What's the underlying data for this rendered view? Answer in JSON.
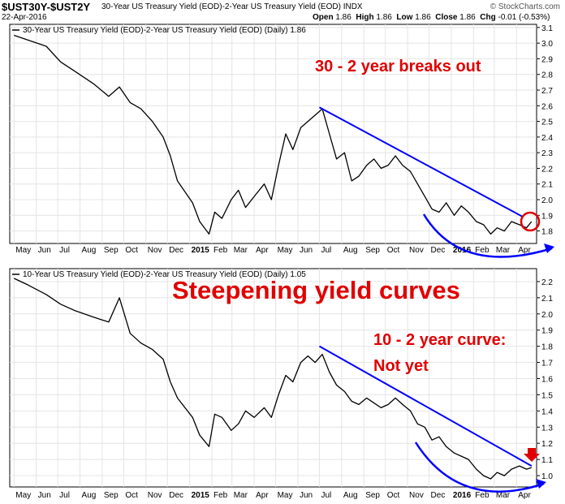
{
  "header": {
    "symbol": "$UST30Y-$UST2Y",
    "full_name": "30-Year US Treasury Yield (EOD)-2-Year US Treasury Yield (EOD) INDX",
    "date": "22-Apr-2016",
    "open_label": "Open",
    "open": "1.86",
    "high_label": "High",
    "high": "1.86",
    "low_label": "Low",
    "low": "1.86",
    "close_label": "Close",
    "close": "1.86",
    "chg_label": "Chg",
    "chg": "-0.01 (-0.53%)",
    "brand": "© StockCharts.com"
  },
  "colors": {
    "price": "#000000",
    "annotation": "#0000ff",
    "callout": "#e00000",
    "grid": "#e4e4e4"
  },
  "chart_data": [
    {
      "type": "line",
      "legend": "30-Year US Treasury Yield (EOD)-2-Year US Treasury Yield (EOD) (Daily) 1.86",
      "ylim": [
        1.72,
        3.12
      ],
      "yticks": [
        1.8,
        1.9,
        2.0,
        2.1,
        2.2,
        2.3,
        2.4,
        2.5,
        2.6,
        2.7,
        2.8,
        2.9,
        3.0,
        3.1
      ],
      "x_months": [
        "May",
        "Jun",
        "Jul",
        "Aug",
        "Sep",
        "Oct",
        "Nov",
        "Dec",
        "2015",
        "Feb",
        "Mar",
        "Apr",
        "May",
        "Jun",
        "Jul",
        "Aug",
        "Sep",
        "Oct",
        "Nov",
        "Dec",
        "2016",
        "Feb",
        "Mar",
        "Apr"
      ],
      "x": [
        "2014-05-01",
        "2014-05-20",
        "2014-06-15",
        "2014-07-05",
        "2014-07-25",
        "2014-08-20",
        "2014-09-10",
        "2014-09-25",
        "2014-10-10",
        "2014-10-25",
        "2014-11-10",
        "2014-11-25",
        "2014-12-05",
        "2014-12-15",
        "2015-01-05",
        "2015-01-15",
        "2015-01-28",
        "2015-02-05",
        "2015-02-15",
        "2015-02-28",
        "2015-03-10",
        "2015-03-20",
        "2015-04-01",
        "2015-04-15",
        "2015-04-25",
        "2015-05-05",
        "2015-05-15",
        "2015-05-25",
        "2015-06-05",
        "2015-06-15",
        "2015-06-25",
        "2015-07-05",
        "2015-07-15",
        "2015-07-25",
        "2015-08-05",
        "2015-08-15",
        "2015-08-25",
        "2015-09-05",
        "2015-09-15",
        "2015-09-25",
        "2015-10-05",
        "2015-10-15",
        "2015-10-25",
        "2015-11-05",
        "2015-11-15",
        "2015-11-25",
        "2015-12-05",
        "2015-12-15",
        "2015-12-25",
        "2016-01-05",
        "2016-01-15",
        "2016-01-25",
        "2016-02-05",
        "2016-02-15",
        "2016-02-25",
        "2016-03-05",
        "2016-03-15",
        "2016-03-25",
        "2016-04-05",
        "2016-04-15",
        "2016-04-22"
      ],
      "y": [
        3.05,
        3.02,
        2.98,
        2.88,
        2.82,
        2.74,
        2.66,
        2.72,
        2.62,
        2.58,
        2.5,
        2.4,
        2.28,
        2.12,
        1.98,
        1.86,
        1.78,
        1.92,
        1.88,
        2.0,
        2.06,
        1.95,
        2.02,
        2.1,
        2.0,
        2.22,
        2.42,
        2.32,
        2.46,
        2.5,
        2.54,
        2.58,
        2.42,
        2.26,
        2.3,
        2.12,
        2.15,
        2.22,
        2.26,
        2.2,
        2.22,
        2.28,
        2.22,
        2.18,
        2.1,
        2.02,
        1.94,
        1.92,
        1.98,
        1.9,
        1.96,
        1.92,
        1.86,
        1.84,
        1.78,
        1.82,
        1.8,
        1.86,
        1.84,
        1.82,
        1.86
      ],
      "annotations": {
        "text": "30 - 2 year breaks out",
        "downtrend": [
          [
            "2015-07-01",
            2.59
          ],
          [
            "2016-04-10",
            1.89
          ]
        ]
      }
    },
    {
      "type": "line",
      "legend": "10-Year US Treasury Yield (EOD)-2-Year US Treasury Yield (EOD) (Daily) 1.05",
      "ylim": [
        0.93,
        2.28
      ],
      "yticks": [
        1.0,
        1.1,
        1.2,
        1.3,
        1.4,
        1.5,
        1.6,
        1.7,
        1.8,
        1.9,
        2.0,
        2.1,
        2.2
      ],
      "x_months": [
        "May",
        "Jun",
        "Jul",
        "Aug",
        "Sep",
        "Oct",
        "Nov",
        "Dec",
        "2015",
        "Feb",
        "Mar",
        "Apr",
        "May",
        "Jun",
        "Jul",
        "Aug",
        "Sep",
        "Oct",
        "Nov",
        "Dec",
        "2016",
        "Feb",
        "Mar",
        "Apr"
      ],
      "x": [
        "2014-05-01",
        "2014-05-20",
        "2014-06-15",
        "2014-07-05",
        "2014-07-25",
        "2014-08-20",
        "2014-09-10",
        "2014-09-25",
        "2014-10-10",
        "2014-10-25",
        "2014-11-10",
        "2014-11-25",
        "2014-12-05",
        "2014-12-15",
        "2015-01-05",
        "2015-01-15",
        "2015-01-28",
        "2015-02-05",
        "2015-02-15",
        "2015-02-28",
        "2015-03-10",
        "2015-03-20",
        "2015-04-01",
        "2015-04-15",
        "2015-04-25",
        "2015-05-05",
        "2015-05-15",
        "2015-05-25",
        "2015-06-05",
        "2015-06-15",
        "2015-06-25",
        "2015-07-05",
        "2015-07-15",
        "2015-07-25",
        "2015-08-05",
        "2015-08-15",
        "2015-08-25",
        "2015-09-05",
        "2015-09-15",
        "2015-09-25",
        "2015-10-05",
        "2015-10-15",
        "2015-10-25",
        "2015-11-05",
        "2015-11-15",
        "2015-11-25",
        "2015-12-05",
        "2015-12-15",
        "2015-12-25",
        "2016-01-05",
        "2016-01-15",
        "2016-01-25",
        "2016-02-05",
        "2016-02-15",
        "2016-02-25",
        "2016-03-05",
        "2016-03-15",
        "2016-03-25",
        "2016-04-05",
        "2016-04-15",
        "2016-04-22"
      ],
      "y": [
        2.22,
        2.18,
        2.12,
        2.06,
        2.02,
        1.98,
        1.95,
        2.1,
        1.88,
        1.82,
        1.78,
        1.72,
        1.58,
        1.48,
        1.36,
        1.25,
        1.18,
        1.38,
        1.36,
        1.28,
        1.32,
        1.4,
        1.36,
        1.42,
        1.36,
        1.5,
        1.62,
        1.58,
        1.7,
        1.74,
        1.7,
        1.75,
        1.64,
        1.56,
        1.52,
        1.46,
        1.44,
        1.48,
        1.45,
        1.42,
        1.44,
        1.48,
        1.44,
        1.4,
        1.32,
        1.3,
        1.22,
        1.24,
        1.18,
        1.14,
        1.12,
        1.1,
        1.04,
        1.0,
        0.98,
        1.02,
        1.0,
        1.04,
        1.06,
        1.04,
        1.05
      ],
      "annotations": {
        "text_line1": "10 - 2 year curve:",
        "text_line2": "Not yet",
        "downtrend": [
          [
            "2015-07-01",
            1.8
          ],
          [
            "2016-04-22",
            1.06
          ]
        ]
      }
    }
  ],
  "overlay_title": "Steepening yield curves"
}
